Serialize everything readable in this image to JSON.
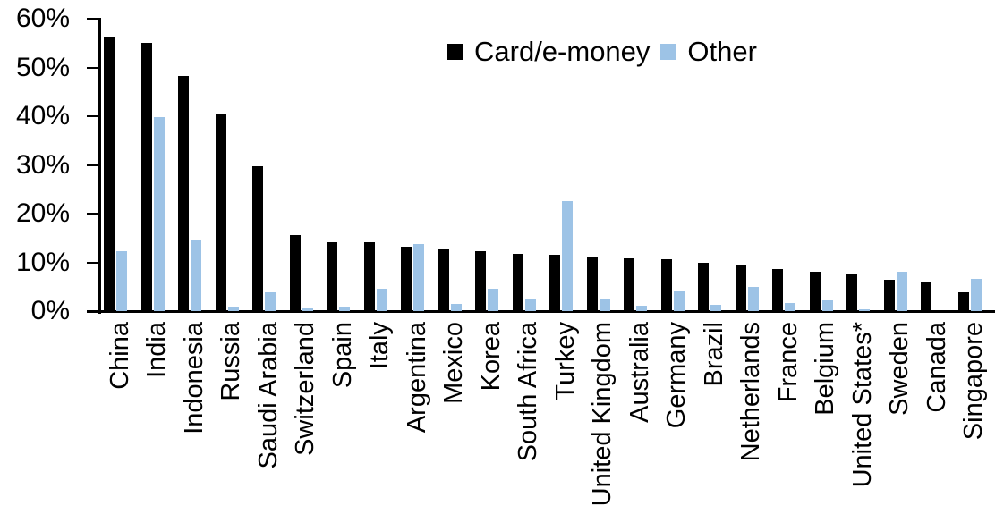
{
  "chart_data": {
    "type": "bar",
    "title": "",
    "xlabel": "",
    "ylabel": "",
    "ylim": [
      0,
      60
    ],
    "ytick_step": 10,
    "yticks": [
      "60%",
      "50%",
      "40%",
      "30%",
      "20%",
      "10%",
      "0%"
    ],
    "grid": false,
    "legend_position": "top-center-inside",
    "categories": [
      "China",
      "India",
      "Indonesia",
      "Russia",
      "Saudi Arabia",
      "Switzerland",
      "Spain",
      "Italy",
      "Argentina",
      "Mexico",
      "Korea",
      "South Africa",
      "Turkey",
      "United Kingdom",
      "Australia",
      "Germany",
      "Brazil",
      "Netherlands",
      "France",
      "Belgium",
      "United States*",
      "Sweden",
      "Canada",
      "Singapore"
    ],
    "series": [
      {
        "name": "Card/e-money",
        "color": "#000000",
        "values": [
          56.3,
          55.0,
          48.2,
          40.5,
          29.8,
          15.6,
          14.2,
          14.1,
          13.3,
          12.9,
          12.3,
          11.7,
          11.6,
          11.1,
          10.9,
          10.6,
          10.0,
          9.3,
          8.7,
          8.1,
          7.8,
          6.5,
          6.0,
          3.8
        ]
      },
      {
        "name": "Other",
        "color": "#9DC3E6",
        "values": [
          12.3,
          39.8,
          14.5,
          1.0,
          3.8,
          0.8,
          1.0,
          4.5,
          13.8,
          1.4,
          4.6,
          2.3,
          22.6,
          2.3,
          1.1,
          4.0,
          1.2,
          4.9,
          1.6,
          2.2,
          0.3,
          8.1,
          0.0,
          6.6
        ]
      }
    ]
  }
}
